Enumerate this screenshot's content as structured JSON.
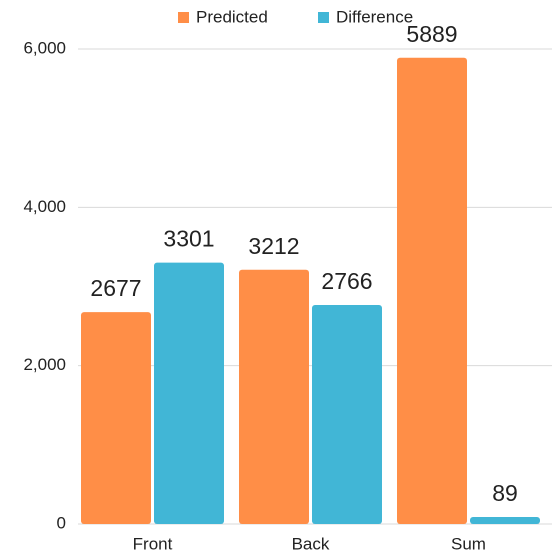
{
  "chart_data": {
    "type": "bar",
    "categories": [
      "Front",
      "Back",
      "Sum"
    ],
    "series": [
      {
        "name": "Predicted",
        "color": "#ff8e47",
        "values": [
          2677,
          3212,
          5889
        ]
      },
      {
        "name": "Difference",
        "color": "#41b6d6",
        "values": [
          3301,
          2766,
          89
        ]
      }
    ],
    "ylim": [
      0,
      6000
    ],
    "yticks": [
      0,
      {
        "value": 2000,
        "label": "2,000"
      },
      {
        "value": 4000,
        "label": "4,000"
      },
      {
        "value": 6000,
        "label": "6,000"
      }
    ],
    "grid": true,
    "legend": "top"
  }
}
